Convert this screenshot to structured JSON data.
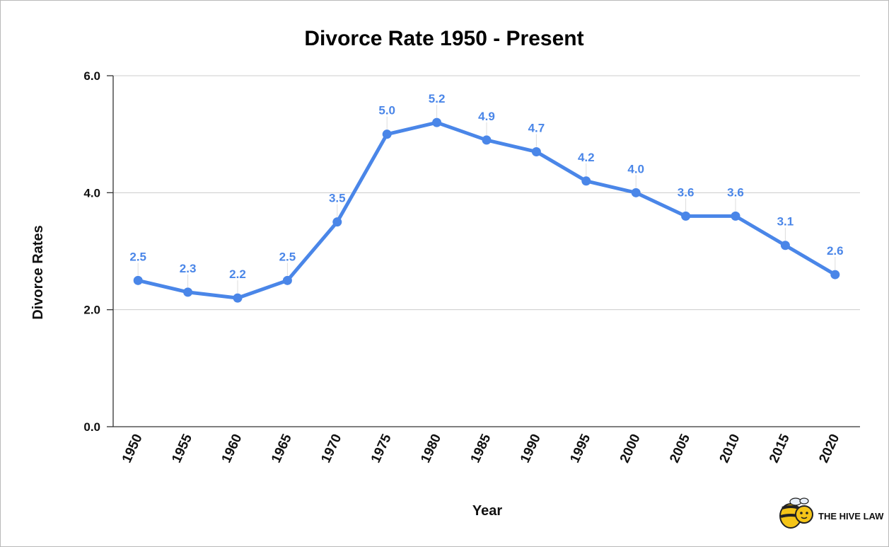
{
  "chart_data": {
    "type": "line",
    "title": "Divorce Rate 1950 - Present",
    "xlabel": "Year",
    "ylabel": "Divorce Rates",
    "categories": [
      "1950",
      "1955",
      "1960",
      "1965",
      "1970",
      "1975",
      "1980",
      "1985",
      "1990",
      "1995",
      "2000",
      "2005",
      "2010",
      "2015",
      "2020"
    ],
    "series": [
      {
        "values": [
          2.5,
          2.3,
          2.2,
          2.5,
          3.5,
          5.0,
          5.2,
          4.9,
          4.7,
          4.2,
          4.0,
          3.6,
          3.6,
          3.1,
          2.6
        ],
        "color": "#4a86e8"
      }
    ],
    "data_labels": [
      "2.5",
      "2.3",
      "2.2",
      "2.5",
      "3.5",
      "5.0",
      "5.2",
      "4.9",
      "4.7",
      "4.2",
      "4.0",
      "3.6",
      "3.6",
      "3.1",
      "2.6"
    ],
    "yticks": [
      "0.0",
      "2.0",
      "4.0",
      "6.0"
    ],
    "ylim": [
      0,
      6
    ],
    "grid": true,
    "legend": "none"
  },
  "branding": {
    "logo_text": "THE HIVE LAW",
    "logo_icon": "bee-icon"
  },
  "colors": {
    "line": "#4a86e8",
    "label": "#4a86e8",
    "grid": "#cccccc",
    "axis": "#333333"
  }
}
